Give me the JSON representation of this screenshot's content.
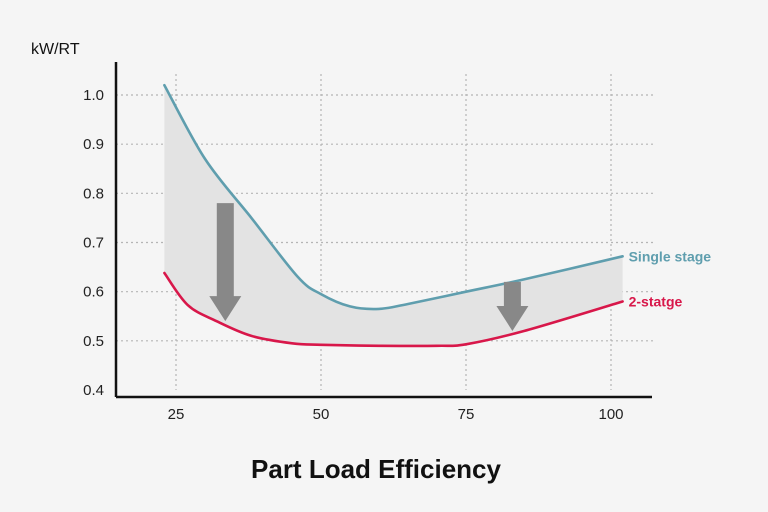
{
  "chart_data": {
    "type": "line",
    "title": "Part Load Efficiency",
    "ylabel": "kW/RT",
    "xlabel": "",
    "xlim": [
      15,
      103
    ],
    "ylim": [
      0.4,
      1.0
    ],
    "x_ticks": [
      "25",
      "50",
      "75",
      "100"
    ],
    "x_tick_values": [
      25,
      50,
      75,
      100
    ],
    "y_ticks": [
      "0.4",
      "0.5",
      "0.6",
      "0.7",
      "0.8",
      "0.9",
      "1.0"
    ],
    "y_tick_values": [
      0.4,
      0.5,
      0.6,
      0.7,
      0.8,
      0.9,
      1.0
    ],
    "grid": true,
    "series": [
      {
        "name": "Single stage",
        "color": "#5f9eae",
        "x": [
          23,
          30,
          38,
          46,
          50,
          55,
          60,
          65,
          75,
          85,
          102
        ],
        "y": [
          1.02,
          0.87,
          0.75,
          0.63,
          0.595,
          0.57,
          0.565,
          0.575,
          0.6,
          0.625,
          0.672
        ]
      },
      {
        "name": "2-statge",
        "color": "#d8174a",
        "x": [
          23,
          27,
          32,
          38,
          45,
          50,
          60,
          70,
          75,
          85,
          102
        ],
        "y": [
          0.638,
          0.573,
          0.54,
          0.51,
          0.495,
          0.492,
          0.49,
          0.49,
          0.493,
          0.52,
          0.58
        ]
      }
    ],
    "shaded_region": {
      "between": [
        "Single stage",
        "2-statge"
      ],
      "color": "#e3e3e3"
    },
    "annotations": [
      {
        "type": "down-arrow",
        "x": 33.5,
        "from": 0.78,
        "to": 0.54,
        "color": "#888888"
      },
      {
        "type": "down-arrow",
        "x": 83,
        "from": 0.62,
        "to": 0.52,
        "color": "#888888"
      }
    ]
  }
}
